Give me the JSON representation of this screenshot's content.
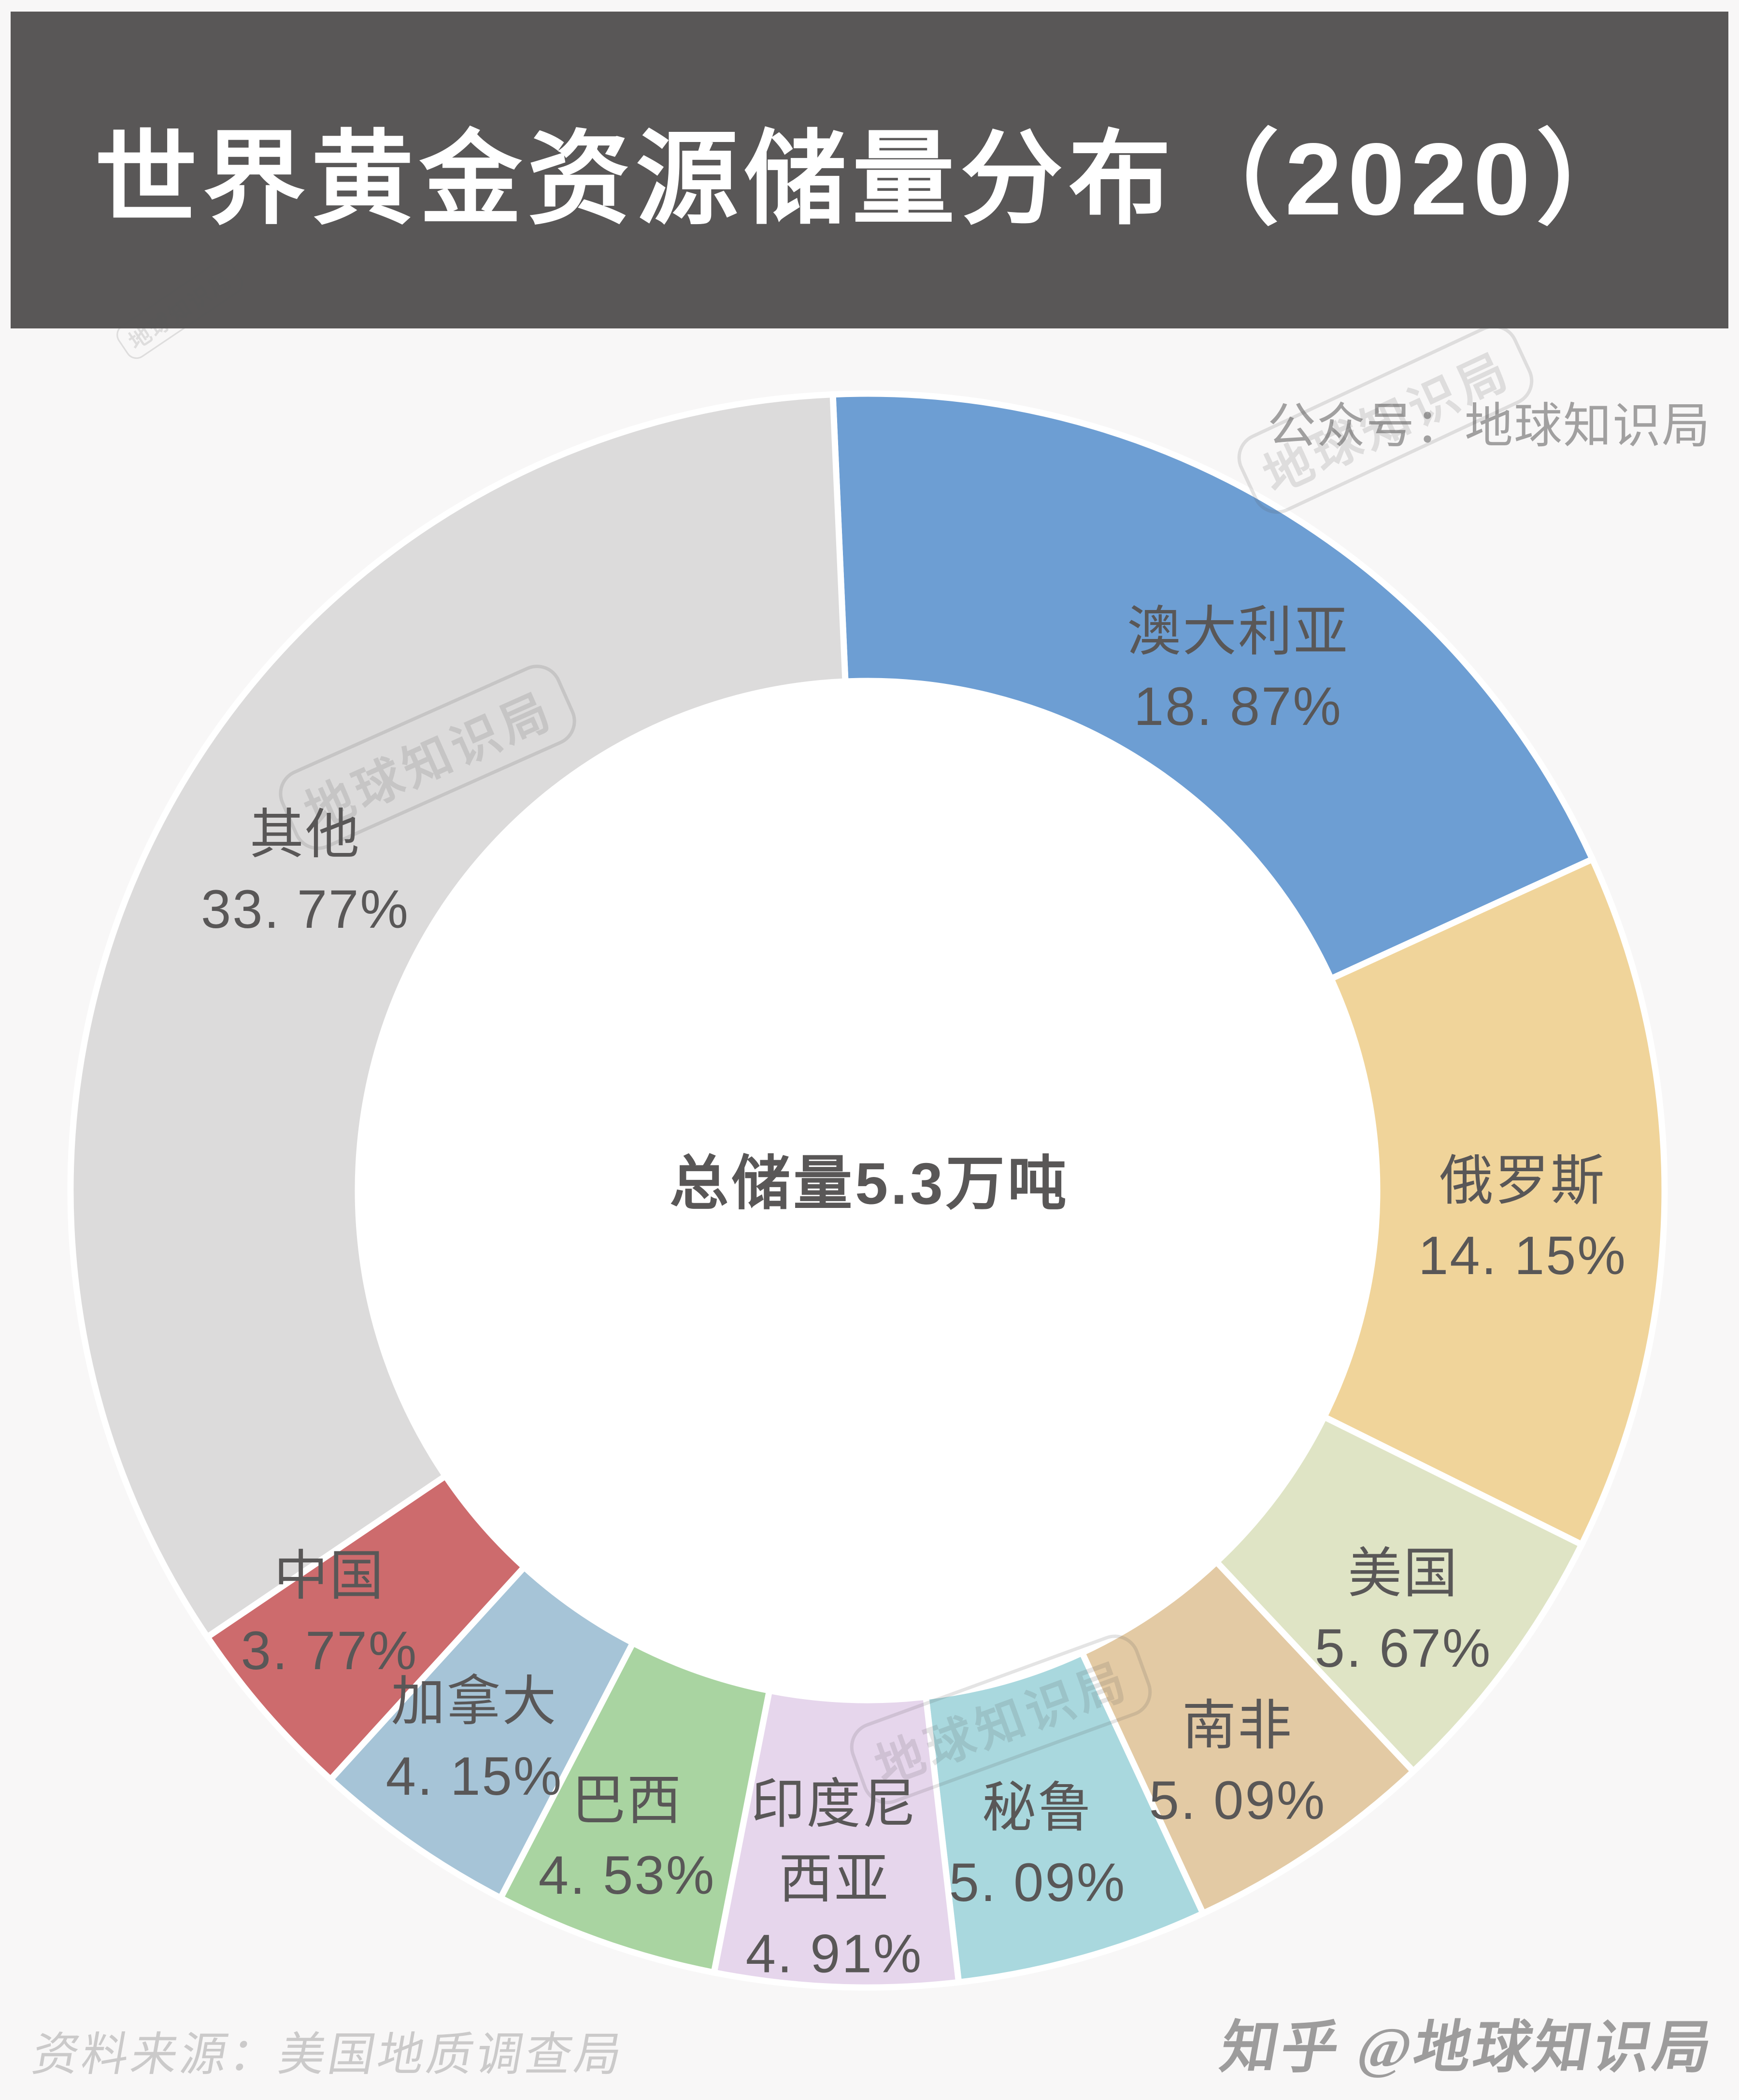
{
  "header": {
    "title": "世界黄金资源储量分布（2020）"
  },
  "official_account": "公众号：地球知识局",
  "watermark_text": "地球知识局",
  "chart_data": {
    "type": "pie",
    "variant": "donut",
    "title": "世界黄金资源储量分布（2020）",
    "center_label": "总储量5.3万吨",
    "unit": "percent",
    "legend_position": "on-slice",
    "start_angle": "12-oclock",
    "direction": "clockwise",
    "series": [
      {
        "name": "澳大利亚",
        "value": 18.87,
        "pct_label": "18.87%",
        "color": "#6d9ed3",
        "name_lines": [
          "澳大利亚"
        ]
      },
      {
        "name": "俄罗斯",
        "value": 14.15,
        "pct_label": "14.15%",
        "color": "#f0d49a",
        "name_lines": [
          "俄罗斯"
        ]
      },
      {
        "name": "美国",
        "value": 5.67,
        "pct_label": "5.67%",
        "color": "#dfe4c5",
        "name_lines": [
          "美国"
        ]
      },
      {
        "name": "南非",
        "value": 5.09,
        "pct_label": "5.09%",
        "color": "#e3caa4",
        "name_lines": [
          "南非"
        ]
      },
      {
        "name": "秘鲁",
        "value": 5.09,
        "pct_label": "5.09%",
        "color": "#a9d8de",
        "name_lines": [
          "秘鲁"
        ]
      },
      {
        "name": "印度尼西亚",
        "value": 4.91,
        "pct_label": "4.91%",
        "color": "#e6d6ec",
        "name_lines": [
          "印度尼",
          "西亚"
        ]
      },
      {
        "name": "巴西",
        "value": 4.53,
        "pct_label": "4.53%",
        "color": "#a9d4a1",
        "name_lines": [
          "巴西"
        ]
      },
      {
        "name": "加拿大",
        "value": 4.15,
        "pct_label": "4.15%",
        "color": "#a6c4d7",
        "name_lines": [
          "加拿大"
        ]
      },
      {
        "name": "中国",
        "value": 3.77,
        "pct_label": "3.77%",
        "color": "#cd6b6d",
        "name_lines": [
          "中国"
        ]
      },
      {
        "name": "其他",
        "value": 33.77,
        "pct_label": "33.77%",
        "color": "#dcdbdb",
        "name_lines": [
          "其他"
        ]
      }
    ]
  },
  "footer": {
    "source": "资料来源：美国地质调查局",
    "credit": "知乎 @地球知识局"
  }
}
